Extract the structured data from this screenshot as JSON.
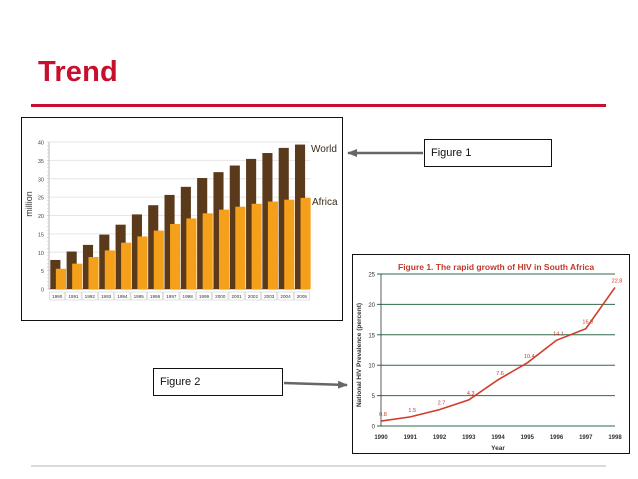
{
  "slide": {
    "title": "Trend"
  },
  "callouts": {
    "figure1": "Figure 1",
    "figure2": "Figure 2"
  },
  "colors": {
    "title_red": "#c8102e",
    "world_bar": "#5b3a1c",
    "africa_bar": "#f5a01a",
    "hiv_line": "#d23a2a",
    "hiv_grid": "#2e6b4a"
  },
  "chart_data": [
    {
      "type": "bar",
      "title": "",
      "ylabel": "million",
      "ylim": [
        0,
        40
      ],
      "yticks": [
        0,
        5,
        10,
        15,
        20,
        25,
        30,
        35,
        40
      ],
      "categories": [
        "1990",
        "1991",
        "1992",
        "1993",
        "1994",
        "1995",
        "1996",
        "1997",
        "1998",
        "1999",
        "2000",
        "2001",
        "2002",
        "2003",
        "2004",
        "2005"
      ],
      "series": [
        {
          "name": "World",
          "values": [
            7.9,
            10.2,
            12.0,
            14.8,
            17.5,
            20.3,
            22.8,
            25.6,
            27.8,
            30.2,
            31.8,
            33.6,
            35.4,
            37.0,
            38.4,
            39.3
          ]
        },
        {
          "name": "Africa",
          "values": [
            5.5,
            6.9,
            8.7,
            10.5,
            12.6,
            14.3,
            15.9,
            17.7,
            19.2,
            20.6,
            21.6,
            22.4,
            23.2,
            23.8,
            24.3,
            24.8
          ]
        }
      ],
      "grid": true,
      "legend": "right"
    },
    {
      "type": "line",
      "title": "Figure 1. The rapid growth of HIV in South Africa",
      "xlabel": "Year",
      "ylabel": "National HIV Prevalence (percent)",
      "ylim": [
        0,
        25
      ],
      "yticks": [
        0,
        5,
        10,
        15,
        20,
        25
      ],
      "xlim": [
        1990,
        1998
      ],
      "x": [
        1990,
        1991,
        1992,
        1993,
        1994,
        1995,
        1996,
        1997,
        1998
      ],
      "series": [
        {
          "values": [
            0.8,
            1.5,
            2.7,
            4.3,
            7.6,
            10.4,
            14.1,
            16.0,
            22.8
          ]
        }
      ],
      "data_labels": [
        "0.8",
        "1.5",
        "2.7",
        "4.3",
        "7.6",
        "10.4",
        "14.1",
        "16.0",
        "22.8"
      ],
      "grid": true
    }
  ]
}
